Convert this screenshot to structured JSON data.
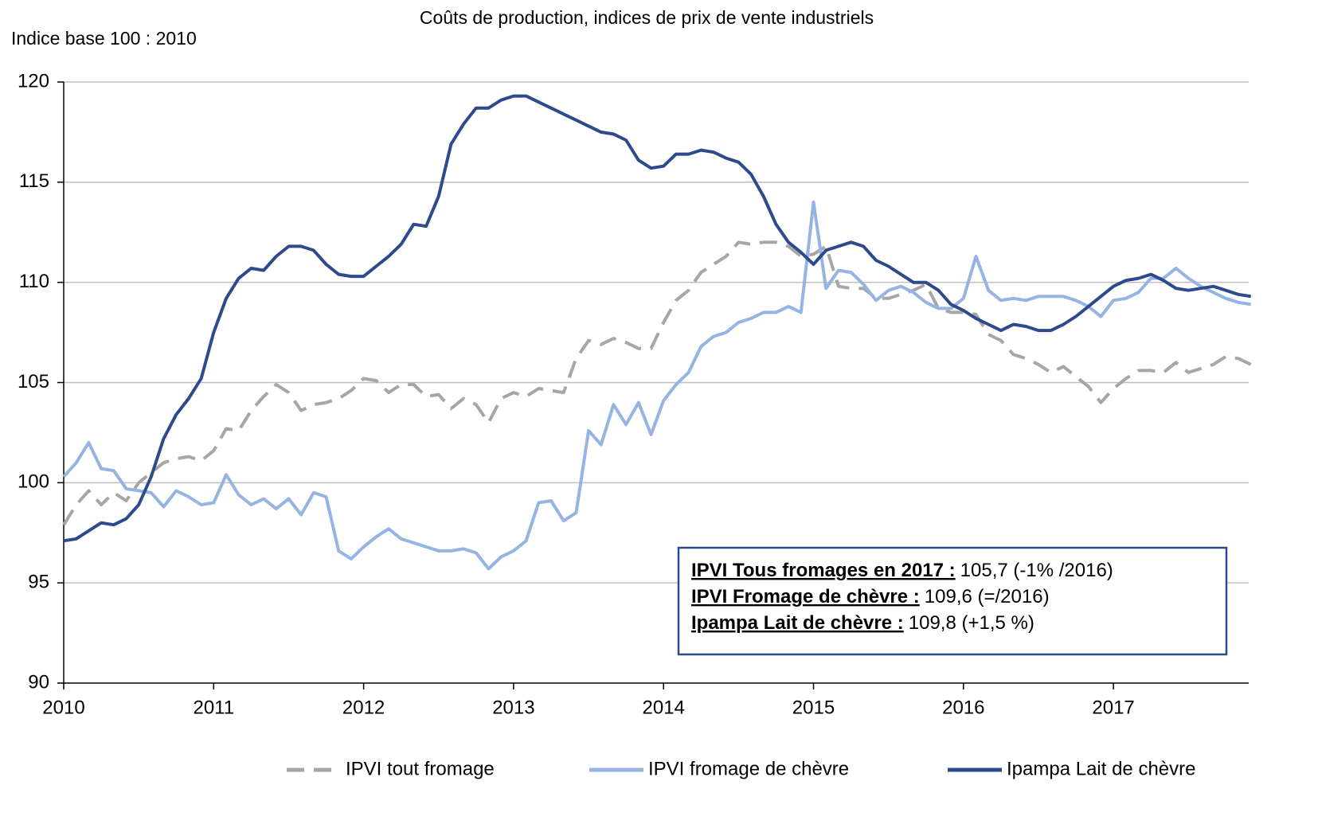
{
  "chart_data": {
    "type": "line",
    "title": "Coûts de production, indices de prix de vente industriels",
    "y_label": "Indice base 100 : 2010",
    "categories": [
      "2010",
      null,
      null,
      null,
      null,
      null,
      null,
      null,
      null,
      null,
      null,
      null,
      "2011",
      null,
      null,
      null,
      null,
      null,
      null,
      null,
      null,
      null,
      null,
      null,
      "2012",
      null,
      null,
      null,
      null,
      null,
      null,
      null,
      null,
      null,
      null,
      null,
      "2013",
      null,
      null,
      null,
      null,
      null,
      null,
      null,
      null,
      null,
      null,
      null,
      "2014",
      null,
      null,
      null,
      null,
      null,
      null,
      null,
      null,
      null,
      null,
      null,
      "2015",
      null,
      null,
      null,
      null,
      null,
      null,
      null,
      null,
      null,
      null,
      null,
      "2016",
      null,
      null,
      null,
      null,
      null,
      null,
      null,
      null,
      null,
      null,
      null,
      "2017",
      null,
      null,
      null,
      null,
      null,
      null,
      null,
      null,
      null,
      null,
      null
    ],
    "ylim": [
      90,
      120
    ],
    "yticks": [
      90,
      95,
      100,
      105,
      110,
      115,
      120
    ],
    "grid": true,
    "legend": "bottom",
    "series": [
      {
        "name": "IPVI tout fromage",
        "color": "#a6a6a6",
        "dashed": true,
        "values": [
          97.9,
          98.9,
          99.6,
          98.9,
          99.5,
          99.1,
          100.0,
          100.5,
          101.0,
          101.2,
          101.3,
          101.1,
          101.6,
          102.7,
          102.6,
          103.6,
          104.3,
          104.9,
          104.5,
          103.6,
          103.9,
          104.0,
          104.2,
          104.6,
          105.2,
          105.1,
          104.5,
          104.9,
          104.9,
          104.3,
          104.4,
          103.7,
          104.2,
          103.9,
          103.0,
          104.2,
          104.5,
          104.3,
          104.7,
          104.6,
          104.5,
          106.2,
          107.1,
          106.9,
          107.2,
          107.0,
          106.7,
          106.7,
          108.0,
          109.1,
          109.6,
          110.5,
          110.9,
          111.3,
          112.0,
          111.9,
          112.0,
          112.0,
          111.8,
          111.3,
          111.4,
          111.8,
          109.8,
          109.7,
          109.7,
          109.2,
          109.2,
          109.4,
          109.6,
          109.9,
          108.7,
          108.5,
          108.5,
          108.4,
          107.4,
          107.1,
          106.4,
          106.2,
          105.9,
          105.5,
          105.8,
          105.3,
          104.8,
          104.0,
          104.7,
          105.2,
          105.6,
          105.6,
          105.5,
          106.0,
          105.5,
          105.7,
          105.9,
          106.3,
          106.2,
          105.9
        ]
      },
      {
        "name": "IPVI fromage de chèvre",
        "color": "#95b3e3",
        "values": [
          100.3,
          101.0,
          102.0,
          100.7,
          100.6,
          99.7,
          99.6,
          99.5,
          98.8,
          99.6,
          99.3,
          98.9,
          99.0,
          100.4,
          99.4,
          98.9,
          99.2,
          98.7,
          99.2,
          98.4,
          99.5,
          99.3,
          96.6,
          96.2,
          96.8,
          97.3,
          97.7,
          97.2,
          97.0,
          96.8,
          96.6,
          96.6,
          96.7,
          96.5,
          95.7,
          96.3,
          96.6,
          97.1,
          99.0,
          99.1,
          98.1,
          98.5,
          102.6,
          101.9,
          103.9,
          102.9,
          104.0,
          102.4,
          104.1,
          104.9,
          105.5,
          106.8,
          107.3,
          107.5,
          108.0,
          108.2,
          108.5,
          108.5,
          108.8,
          108.5,
          114.0,
          109.7,
          110.6,
          110.5,
          109.9,
          109.1,
          109.6,
          109.8,
          109.5,
          109.0,
          108.7,
          108.7,
          109.2,
          111.3,
          109.6,
          109.1,
          109.2,
          109.1,
          109.3,
          109.3,
          109.3,
          109.1,
          108.8,
          108.3,
          109.1,
          109.2,
          109.5,
          110.2,
          110.2,
          110.7,
          110.2,
          109.8,
          109.5,
          109.2,
          109.0,
          108.9
        ]
      },
      {
        "name": "Ipampa Lait de chèvre",
        "color": "#2c4a8c",
        "values": [
          97.1,
          97.2,
          97.6,
          98.0,
          97.9,
          98.2,
          98.9,
          100.3,
          102.2,
          103.4,
          104.2,
          105.2,
          107.5,
          109.2,
          110.2,
          110.7,
          110.6,
          111.3,
          111.8,
          111.8,
          111.6,
          110.9,
          110.4,
          110.3,
          110.3,
          110.8,
          111.3,
          111.9,
          112.9,
          112.8,
          114.3,
          116.9,
          117.9,
          118.7,
          118.7,
          119.1,
          119.3,
          119.3,
          119.0,
          118.7,
          118.4,
          118.1,
          117.8,
          117.5,
          117.4,
          117.1,
          116.1,
          115.7,
          115.8,
          116.4,
          116.4,
          116.6,
          116.5,
          116.2,
          116.0,
          115.4,
          114.3,
          112.9,
          112.0,
          111.5,
          110.9,
          111.6,
          111.8,
          112.0,
          111.8,
          111.1,
          110.8,
          110.4,
          110.0,
          110.0,
          109.6,
          108.9,
          108.6,
          108.2,
          107.9,
          107.6,
          107.9,
          107.8,
          107.6,
          107.6,
          107.9,
          108.3,
          108.8,
          109.3,
          109.8,
          110.1,
          110.2,
          110.4,
          110.1,
          109.7,
          109.6,
          109.7,
          109.8,
          109.6,
          109.4,
          109.3
        ]
      }
    ],
    "annotation": [
      {
        "label": "IPVI  Tous fromages en 2017 :",
        "text": "105,7 (-1% /2016)"
      },
      {
        "label": "IPVI Fromage de chèvre :",
        "text": "109,6 (=/2016)"
      },
      {
        "label": "Ipampa  Lait de chèvre :",
        "text": "109,8 (+1,5 %)"
      }
    ]
  }
}
